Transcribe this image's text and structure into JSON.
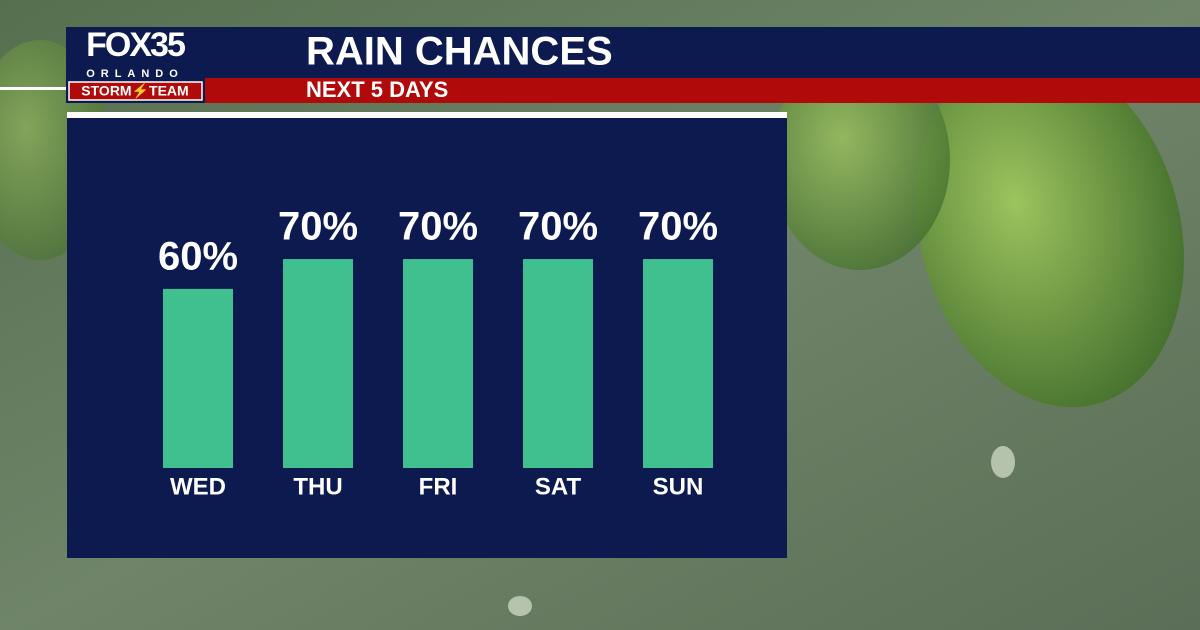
{
  "logo": {
    "name": "FOX35",
    "city": "ORLANDO",
    "team": "STORM⚡TEAM"
  },
  "chart_data": {
    "type": "bar",
    "title": "RAIN CHANCES",
    "subtitle": "NEXT 5 DAYS",
    "categories": [
      "WED",
      "THU",
      "FRI",
      "SAT",
      "SUN"
    ],
    "values": [
      60,
      70,
      70,
      70,
      70
    ],
    "value_labels": [
      "60%",
      "70%",
      "70%",
      "70%",
      "70%"
    ],
    "color": "#40bf8f"
  }
}
